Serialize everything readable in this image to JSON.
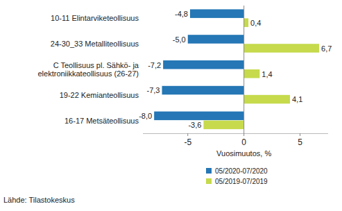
{
  "chart_data": {
    "type": "bar",
    "orientation": "horizontal",
    "categories": [
      "10-11 Elintarviketeollisuus",
      "24-30_33 Metalliteollisuus",
      "C Teollisuus pl. Sähkö- ja elektroniikkateollisuus (26-27)",
      "19-22 Kemianteollisuus",
      "16-17 Metsäteollisuus"
    ],
    "series": [
      {
        "name": "05/2020-07/2020",
        "color": "#2577b5",
        "values": [
          -4.8,
          -5.0,
          -7.2,
          -7.3,
          -8.0
        ],
        "value_labels": [
          "-4,8",
          "-5,0",
          "-7,2",
          "-7,3",
          "-8,0"
        ]
      },
      {
        "name": "05/2019-07/2019",
        "color": "#c6da4c",
        "values": [
          0.4,
          6.7,
          1.4,
          4.1,
          -3.6
        ],
        "value_labels": [
          "0,4",
          "6,7",
          "1,4",
          "4,1",
          "-3,6"
        ]
      }
    ],
    "x_label": "Vuosimuutos, %",
    "source": "Lähde: Tilastokeskus",
    "xlim": [
      -9,
      7.5
    ],
    "xticks": [
      -5,
      0,
      5
    ],
    "data_labels": true,
    "legend": "bottom",
    "grid": false
  }
}
